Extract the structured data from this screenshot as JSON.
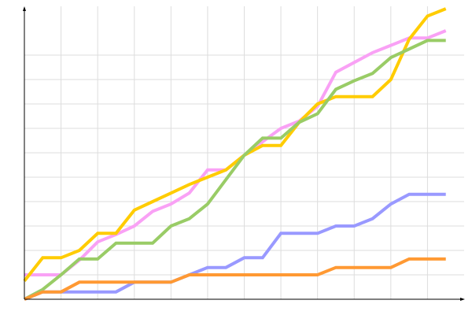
{
  "chart_data": {
    "type": "line",
    "x": [
      0,
      1,
      2,
      3,
      4,
      5,
      6,
      7,
      8,
      9,
      10,
      11,
      12,
      13,
      14,
      15,
      16,
      17,
      18,
      19,
      20,
      21,
      22,
      23
    ],
    "series": [
      {
        "color": "#f9a1f5",
        "values": [
          1,
          1,
          1,
          1.6,
          2.35,
          2.65,
          3,
          3.6,
          3.9,
          4.35,
          5.3,
          5.3,
          5.9,
          6.45,
          7,
          7.3,
          7.9,
          9.3,
          9.7,
          10.1,
          10.4,
          10.7,
          10.7,
          11
        ]
      },
      {
        "color": "#ffcc00",
        "values": [
          0.75,
          1.7,
          1.7,
          2,
          2.7,
          2.7,
          3.65,
          4,
          4.35,
          4.7,
          5,
          5.3,
          5.9,
          6.3,
          6.3,
          7.25,
          8,
          8.3,
          8.3,
          8.3,
          9,
          10.65,
          11.6,
          11.9
        ]
      },
      {
        "color": "#99cc66",
        "values": [
          0,
          0.4,
          1,
          1.65,
          1.65,
          2.3,
          2.3,
          2.3,
          3,
          3.3,
          3.9,
          4.9,
          5.9,
          6.6,
          6.6,
          7.25,
          7.6,
          8.6,
          8.95,
          9.25,
          9.9,
          10.25,
          10.6,
          10.6
        ]
      },
      {
        "color": "#9999ff",
        "values": [
          0,
          0.3,
          0.3,
          0.3,
          0.3,
          0.3,
          0.7,
          0.7,
          0.7,
          1,
          1.3,
          1.3,
          1.7,
          1.7,
          2.7,
          2.7,
          2.7,
          3,
          3,
          3.3,
          3.9,
          4.3,
          4.3,
          4.3
        ]
      },
      {
        "color": "#ff9933",
        "values": [
          0,
          0.3,
          0.3,
          0.7,
          0.7,
          0.7,
          0.7,
          0.7,
          0.7,
          1,
          1,
          1,
          1,
          1,
          1,
          1,
          1,
          1.3,
          1.3,
          1.3,
          1.3,
          1.65,
          1.65,
          1.65
        ]
      }
    ],
    "xlim": [
      0,
      24
    ],
    "ylim": [
      0,
      12
    ],
    "xticks": [
      2,
      4,
      6,
      8,
      10,
      12,
      14,
      16,
      18,
      20,
      22
    ],
    "yticks": [
      1,
      2,
      3,
      4,
      5,
      6,
      7,
      8,
      9,
      10
    ],
    "grid": true
  }
}
